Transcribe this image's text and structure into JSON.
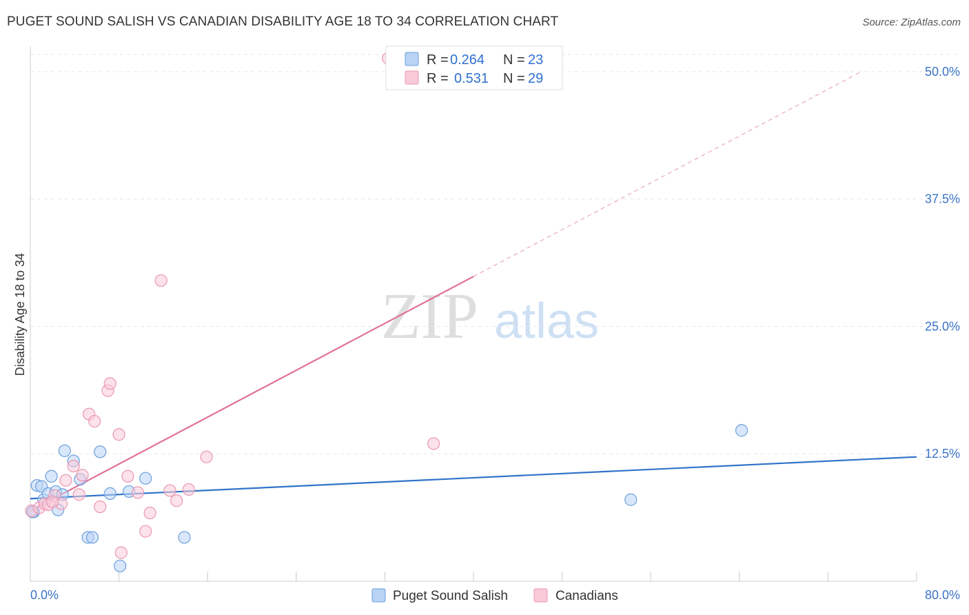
{
  "chart_data": {
    "type": "scatter",
    "title": "PUGET SOUND SALISH VS CANADIAN DISABILITY AGE 18 TO 34 CORRELATION CHART",
    "source": "Source: ZipAtlas.com",
    "xlabel": "",
    "ylabel": "Disability Age 18 to 34",
    "xlim": [
      0,
      80
    ],
    "ylim": [
      0,
      52.5
    ],
    "x_tick_labels": [
      "0.0%",
      "80.0%"
    ],
    "y_ticks": [
      12.5,
      25.0,
      37.5,
      50.0
    ],
    "y_tick_labels": [
      "12.5%",
      "25.0%",
      "37.5%",
      "50.0%"
    ],
    "grid": true,
    "watermark": "ZIPatlas",
    "legend": {
      "position": "top-center",
      "rows": [
        {
          "r_label": "R =",
          "r_value": "0.264",
          "n_label": "N =",
          "n_value": "23"
        },
        {
          "r_label": "R =",
          "r_value": "0.531",
          "n_label": "N =",
          "n_value": "29"
        }
      ]
    },
    "series": [
      {
        "name": "Puget Sound Salish",
        "color": "#6a9fdd",
        "fill": "#b9d3f5",
        "line_color": "#2f73c9",
        "trend": {
          "x0": 0,
          "y0": 8.1,
          "x1": 80,
          "y1": 12.2
        },
        "points": [
          [
            0.3,
            6.8
          ],
          [
            0.6,
            9.4
          ],
          [
            1.0,
            9.3
          ],
          [
            1.2,
            8.0
          ],
          [
            1.6,
            8.6
          ],
          [
            1.9,
            10.3
          ],
          [
            2.3,
            8.8
          ],
          [
            2.5,
            7.0
          ],
          [
            2.9,
            8.5
          ],
          [
            3.1,
            12.8
          ],
          [
            3.9,
            11.8
          ],
          [
            4.5,
            10.0
          ],
          [
            5.2,
            4.3
          ],
          [
            5.6,
            4.3
          ],
          [
            6.3,
            12.7
          ],
          [
            7.2,
            8.6
          ],
          [
            8.1,
            1.5
          ],
          [
            8.9,
            8.8
          ],
          [
            10.4,
            10.1
          ],
          [
            13.9,
            4.3
          ],
          [
            54.2,
            8.0
          ],
          [
            64.2,
            14.8
          ],
          [
            0.2,
            6.8
          ]
        ]
      },
      {
        "name": "Canadians",
        "color": "#ea97b0",
        "fill": "#f9cad8",
        "line_color": "#e0709a",
        "trend": {
          "x0": 0,
          "y0": 6.9,
          "x1": 40,
          "y1": 29.9
        },
        "trend_dashed": {
          "x0": 40,
          "y0": 29.9,
          "x1": 75,
          "y1": 50.0
        },
        "points": [
          [
            0.1,
            6.9
          ],
          [
            0.8,
            7.2
          ],
          [
            1.3,
            7.6
          ],
          [
            1.6,
            7.5
          ],
          [
            2.2,
            8.4
          ],
          [
            2.8,
            7.6
          ],
          [
            3.2,
            9.9
          ],
          [
            3.9,
            11.3
          ],
          [
            4.4,
            8.5
          ],
          [
            4.7,
            10.4
          ],
          [
            5.3,
            16.4
          ],
          [
            5.8,
            15.7
          ],
          [
            6.3,
            7.3
          ],
          [
            7.0,
            18.7
          ],
          [
            7.2,
            19.4
          ],
          [
            8.0,
            14.4
          ],
          [
            8.8,
            10.3
          ],
          [
            8.2,
            2.8
          ],
          [
            9.7,
            8.7
          ],
          [
            10.4,
            4.9
          ],
          [
            10.8,
            6.7
          ],
          [
            11.8,
            29.5
          ],
          [
            12.6,
            8.9
          ],
          [
            13.2,
            7.9
          ],
          [
            14.3,
            9.0
          ],
          [
            15.9,
            12.2
          ],
          [
            36.4,
            13.5
          ],
          [
            32.3,
            51.3
          ],
          [
            2.0,
            7.8
          ]
        ]
      }
    ]
  }
}
